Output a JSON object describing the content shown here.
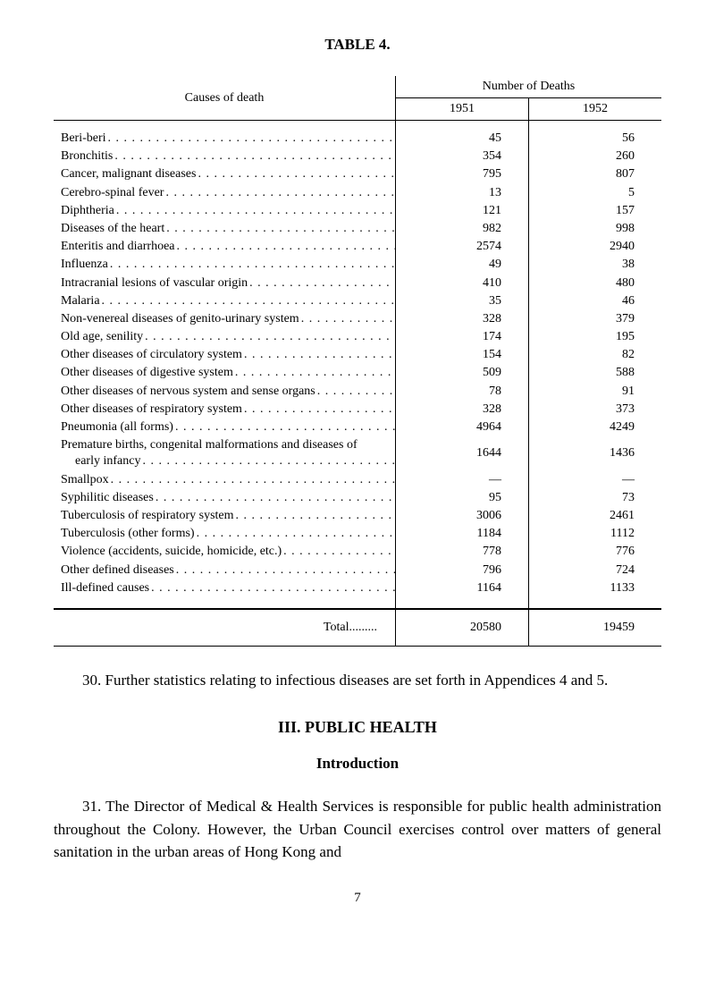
{
  "table_title": "TABLE 4.",
  "headers": {
    "causes": "Causes of death",
    "deaths": "Number of Deaths",
    "year1": "1951",
    "year2": "1952"
  },
  "rows": [
    {
      "cause": "Beri-beri",
      "v1951": "45",
      "v1952": "56"
    },
    {
      "cause": "Bronchitis",
      "v1951": "354",
      "v1952": "260"
    },
    {
      "cause": "Cancer, malignant diseases",
      "v1951": "795",
      "v1952": "807"
    },
    {
      "cause": "Cerebro-spinal fever",
      "v1951": "13",
      "v1952": "5"
    },
    {
      "cause": "Diphtheria",
      "v1951": "121",
      "v1952": "157"
    },
    {
      "cause": "Diseases of the heart",
      "v1951": "982",
      "v1952": "998"
    },
    {
      "cause": "Enteritis and diarrhoea",
      "v1951": "2574",
      "v1952": "2940"
    },
    {
      "cause": "Influenza",
      "v1951": "49",
      "v1952": "38"
    },
    {
      "cause": "Intracranial lesions of vascular origin",
      "v1951": "410",
      "v1952": "480"
    },
    {
      "cause": "Malaria",
      "v1951": "35",
      "v1952": "46"
    },
    {
      "cause": "Non-venereal diseases of genito-urinary system",
      "v1951": "328",
      "v1952": "379"
    },
    {
      "cause": "Old age, senility",
      "v1951": "174",
      "v1952": "195"
    },
    {
      "cause": "Other diseases of circulatory system",
      "v1951": "154",
      "v1952": "82"
    },
    {
      "cause": "Other diseases of digestive system",
      "v1951": "509",
      "v1952": "588"
    },
    {
      "cause": "Other diseases of nervous system and sense organs",
      "v1951": "78",
      "v1952": "91"
    },
    {
      "cause": "Other diseases of respiratory system",
      "v1951": "328",
      "v1952": "373"
    },
    {
      "cause": "Pneumonia (all forms)",
      "v1951": "4964",
      "v1952": "4249"
    },
    {
      "cause": "Premature births, congenital malformations and diseases of early infancy",
      "v1951": "1644",
      "v1952": "1436",
      "wrap": true
    },
    {
      "cause": "Smallpox",
      "v1951": "—",
      "v1952": "—"
    },
    {
      "cause": "Syphilitic diseases",
      "v1951": "95",
      "v1952": "73"
    },
    {
      "cause": "Tuberculosis of respiratory system",
      "v1951": "3006",
      "v1952": "2461"
    },
    {
      "cause": "Tuberculosis (other forms)",
      "v1951": "1184",
      "v1952": "1112"
    },
    {
      "cause": "Violence (accidents, suicide, homicide, etc.)",
      "v1951": "778",
      "v1952": "776"
    },
    {
      "cause": "Other defined diseases",
      "v1951": "796",
      "v1952": "724"
    },
    {
      "cause": "Ill-defined causes",
      "v1951": "1164",
      "v1952": "1133"
    }
  ],
  "total": {
    "label": "Total.........",
    "v1951": "20580",
    "v1952": "19459"
  },
  "para1": "30. Further statistics relating to infectious diseases are set forth in Appendices 4 and 5.",
  "section_heading": "III. PUBLIC HEALTH",
  "subheading": "Introduction",
  "para2": "31. The Director of Medical & Health Services is responsible for public health administration throughout the Colony. However, the Urban Council exercises control over matters of general sanitation in the urban areas of Hong Kong and",
  "page_number": "7",
  "styling": {
    "font_family": "Times New Roman",
    "body_font_size_pt": 15,
    "table_font_size_pt": 14,
    "heading_font_size_pt": 18,
    "text_color": "#000000",
    "background_color": "#ffffff",
    "border_color": "#000000",
    "column_widths": {
      "causes": "auto",
      "year": 110
    }
  }
}
